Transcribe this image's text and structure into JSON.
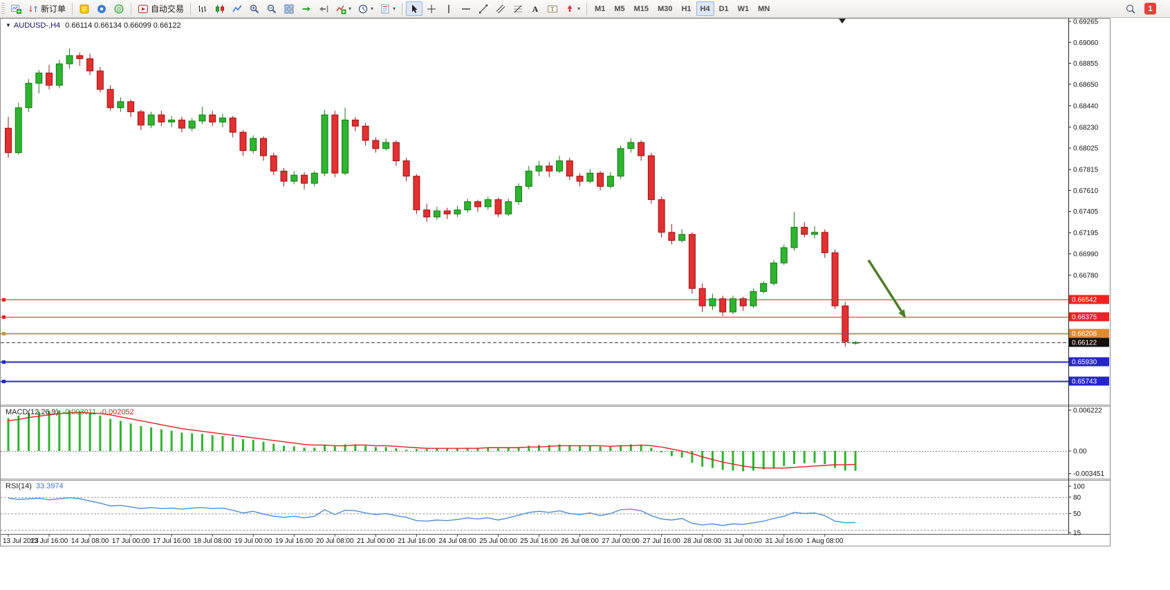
{
  "toolbar": {
    "new_order_label": "新订单",
    "autotrade_label": "自动交易",
    "timeframes": [
      "M1",
      "M5",
      "M15",
      "M30",
      "H1",
      "H4",
      "D1",
      "W1",
      "MN"
    ],
    "active_timeframe": "H4",
    "notification_count": "1",
    "icons": [
      "new-chart",
      "new-order",
      "metaeditor",
      "options",
      "community",
      "autotrading",
      "bars-chart",
      "candlestick-chart",
      "line-chart",
      "zoom-in",
      "zoom-out",
      "tile-windows",
      "auto-scroll",
      "chart-shift",
      "indicators",
      "periods",
      "templates",
      "cursor",
      "crosshair",
      "vertical-line",
      "horizontal-line",
      "trendline",
      "equidistant-channel",
      "fibonacci",
      "text",
      "text-label",
      "arrow-shapes",
      "search",
      "notification"
    ]
  },
  "chart": {
    "symbol_period": "AUDUSD-,H4",
    "ohlc_readout": "0.66114 0.66134 0.66099 0.66122",
    "macd_label": "MACD(12,26,9)",
    "macd_value_main": "-0.003011",
    "macd_value_signal": "-0.002052",
    "rsi_label": "RSI(14)",
    "rsi_value": "33.3974"
  },
  "chart_data": {
    "type": "candlestick",
    "symbol": "AUDUSD-",
    "timeframe": "H4",
    "price_axis_labels": [
      "0.69265",
      "0.69060",
      "0.68855",
      "0.68650",
      "0.68440",
      "0.68230",
      "0.68025",
      "0.67815",
      "0.67610",
      "0.67405",
      "0.67195",
      "0.66990",
      "0.66780"
    ],
    "time_labels": [
      "13 Jul 2023",
      "13 Jul 16:00",
      "14 Jul 08:00",
      "17 Jul 00:00",
      "17 Jul 16:00",
      "18 Jul 08:00",
      "19 Jul 00:00",
      "19 Jul 16:00",
      "20 Jul 08:00",
      "21 Jul 00:00",
      "21 Jul 16:00",
      "24 Jul 08:00",
      "25 Jul 00:00",
      "25 Jul 16:00",
      "26 Jul 08:00",
      "27 Jul 00:00",
      "27 Jul 16:00",
      "28 Jul 08:00",
      "31 Jul 00:00",
      "31 Jul 16:00",
      "1 Aug 08:00"
    ],
    "candles": [
      [
        0.6822,
        0.6833,
        0.6793,
        0.6798
      ],
      [
        0.6798,
        0.6847,
        0.6796,
        0.6842
      ],
      [
        0.6842,
        0.687,
        0.6838,
        0.6866
      ],
      [
        0.6866,
        0.6879,
        0.6856,
        0.6876
      ],
      [
        0.6876,
        0.6884,
        0.686,
        0.6864
      ],
      [
        0.6864,
        0.6889,
        0.6861,
        0.6885
      ],
      [
        0.6885,
        0.69,
        0.688,
        0.6893
      ],
      [
        0.6893,
        0.6896,
        0.6883,
        0.689
      ],
      [
        0.689,
        0.6895,
        0.6874,
        0.6878
      ],
      [
        0.6878,
        0.6882,
        0.6857,
        0.686
      ],
      [
        0.686,
        0.6864,
        0.6839,
        0.6842
      ],
      [
        0.6842,
        0.6852,
        0.6838,
        0.6848
      ],
      [
        0.6848,
        0.685,
        0.6833,
        0.6838
      ],
      [
        0.6838,
        0.684,
        0.682,
        0.6825
      ],
      [
        0.6825,
        0.6838,
        0.6822,
        0.6835
      ],
      [
        0.6835,
        0.6839,
        0.6824,
        0.6828
      ],
      [
        0.6828,
        0.6834,
        0.6823,
        0.683
      ],
      [
        0.683,
        0.6833,
        0.6818,
        0.6822
      ],
      [
        0.6822,
        0.6832,
        0.6819,
        0.6829
      ],
      [
        0.6829,
        0.6843,
        0.6826,
        0.6835
      ],
      [
        0.6835,
        0.6839,
        0.6824,
        0.6828
      ],
      [
        0.6828,
        0.6836,
        0.6823,
        0.6832
      ],
      [
        0.6832,
        0.6834,
        0.6813,
        0.6818
      ],
      [
        0.6818,
        0.682,
        0.6795,
        0.68
      ],
      [
        0.68,
        0.6815,
        0.6797,
        0.6812
      ],
      [
        0.6812,
        0.6814,
        0.679,
        0.6795
      ],
      [
        0.6795,
        0.6798,
        0.6776,
        0.678
      ],
      [
        0.678,
        0.6783,
        0.6765,
        0.677
      ],
      [
        0.677,
        0.678,
        0.6767,
        0.6776
      ],
      [
        0.6776,
        0.6779,
        0.6762,
        0.6768
      ],
      [
        0.6768,
        0.678,
        0.6765,
        0.6778
      ],
      [
        0.6778,
        0.684,
        0.6775,
        0.6835
      ],
      [
        0.6835,
        0.6839,
        0.6774,
        0.6778
      ],
      [
        0.6778,
        0.6842,
        0.6776,
        0.683
      ],
      [
        0.683,
        0.6833,
        0.6819,
        0.6824
      ],
      [
        0.6824,
        0.6827,
        0.6805,
        0.681
      ],
      [
        0.681,
        0.6813,
        0.6798,
        0.6802
      ],
      [
        0.6802,
        0.6812,
        0.68,
        0.6808
      ],
      [
        0.6808,
        0.681,
        0.6785,
        0.679
      ],
      [
        0.679,
        0.6793,
        0.677,
        0.6775
      ],
      [
        0.6775,
        0.6777,
        0.6738,
        0.6742
      ],
      [
        0.6742,
        0.6748,
        0.673,
        0.6735
      ],
      [
        0.6735,
        0.6745,
        0.6732,
        0.6741
      ],
      [
        0.6741,
        0.6744,
        0.6733,
        0.6738
      ],
      [
        0.6738,
        0.6746,
        0.6735,
        0.6742
      ],
      [
        0.6742,
        0.6753,
        0.6739,
        0.675
      ],
      [
        0.675,
        0.6752,
        0.674,
        0.6745
      ],
      [
        0.6745,
        0.6755,
        0.6742,
        0.6752
      ],
      [
        0.6752,
        0.6754,
        0.6735,
        0.6738
      ],
      [
        0.6738,
        0.6753,
        0.6736,
        0.675
      ],
      [
        0.675,
        0.6768,
        0.6747,
        0.6765
      ],
      [
        0.6765,
        0.6785,
        0.6762,
        0.678
      ],
      [
        0.678,
        0.679,
        0.6775,
        0.6785
      ],
      [
        0.6785,
        0.6789,
        0.6774,
        0.678
      ],
      [
        0.678,
        0.6795,
        0.6778,
        0.679
      ],
      [
        0.679,
        0.6793,
        0.6771,
        0.6775
      ],
      [
        0.6775,
        0.6778,
        0.6765,
        0.677
      ],
      [
        0.677,
        0.6782,
        0.6768,
        0.6778
      ],
      [
        0.6778,
        0.678,
        0.6761,
        0.6765
      ],
      [
        0.6765,
        0.6779,
        0.6763,
        0.6775
      ],
      [
        0.6775,
        0.6805,
        0.6772,
        0.6802
      ],
      [
        0.6802,
        0.6812,
        0.6798,
        0.6808
      ],
      [
        0.6808,
        0.681,
        0.679,
        0.6795
      ],
      [
        0.6795,
        0.6798,
        0.6748,
        0.6752
      ],
      [
        0.6752,
        0.6755,
        0.6715,
        0.672
      ],
      [
        0.672,
        0.6728,
        0.6708,
        0.6712
      ],
      [
        0.6712,
        0.6723,
        0.671,
        0.6718
      ],
      [
        0.6718,
        0.672,
        0.666,
        0.6665
      ],
      [
        0.6665,
        0.667,
        0.6642,
        0.6648
      ],
      [
        0.6648,
        0.666,
        0.6644,
        0.6655
      ],
      [
        0.6655,
        0.6658,
        0.6638,
        0.6642
      ],
      [
        0.6642,
        0.6658,
        0.664,
        0.6655
      ],
      [
        0.6655,
        0.6657,
        0.6643,
        0.6648
      ],
      [
        0.6648,
        0.6665,
        0.6646,
        0.6662
      ],
      [
        0.6662,
        0.6672,
        0.666,
        0.667
      ],
      [
        0.667,
        0.6693,
        0.6668,
        0.669
      ],
      [
        0.669,
        0.6708,
        0.6688,
        0.6705
      ],
      [
        0.6705,
        0.674,
        0.6702,
        0.6725
      ],
      [
        0.6725,
        0.673,
        0.6715,
        0.6718
      ],
      [
        0.6718,
        0.6726,
        0.6714,
        0.672
      ],
      [
        0.672,
        0.6723,
        0.6695,
        0.67
      ],
      [
        0.67,
        0.6703,
        0.6645,
        0.6648
      ],
      [
        0.6648,
        0.6652,
        0.6608,
        0.6613
      ],
      [
        0.66114,
        0.66134,
        0.66099,
        0.66122
      ]
    ],
    "hlines": [
      {
        "price": 0.66542,
        "label": "0.66542",
        "color": "#f02020",
        "width": 1,
        "marker": true
      },
      {
        "price": 0.66375,
        "label": "0.66375",
        "color": "#f02020",
        "width": 1,
        "marker": true
      },
      {
        "price": 0.66208,
        "label": "0.66208",
        "color": "#e08a2e",
        "width": 2,
        "marker": true
      },
      {
        "price": 0.66122,
        "label": "0.66122",
        "color": "#3c3c3c",
        "width": 1,
        "style": "dash",
        "badge": "#101010",
        "marker": false
      },
      {
        "price": 0.6593,
        "label": "0.65930",
        "color": "#2626c8",
        "width": 2,
        "marker": true
      },
      {
        "price": 0.65743,
        "label": "0.65743",
        "color": "#2626c8",
        "width": 2,
        "marker": true
      }
    ],
    "macd": {
      "axis_labels": [
        "0.006222",
        "0.00",
        "-0.003451"
      ],
      "histogram": [
        0.005,
        0.0054,
        0.0058,
        0.006,
        0.0061,
        0.0062,
        0.0062,
        0.006,
        0.0058,
        0.0054,
        0.0049,
        0.0046,
        0.0042,
        0.0038,
        0.0036,
        0.0033,
        0.0031,
        0.0028,
        0.0027,
        0.0026,
        0.0024,
        0.0023,
        0.0021,
        0.0018,
        0.0017,
        0.0014,
        0.0011,
        0.0008,
        0.0007,
        0.0005,
        0.0005,
        0.0009,
        0.0007,
        0.001,
        0.001,
        0.0008,
        0.0006,
        0.0006,
        0.0004,
        0.0002,
        0.0003,
        0.0003,
        0.0004,
        0.0004,
        0.0004,
        0.0005,
        0.0005,
        0.0005,
        0.0004,
        0.0005,
        0.0006,
        0.0008,
        0.0009,
        0.0009,
        0.001,
        0.0009,
        0.0008,
        0.0008,
        0.0007,
        0.0007,
        0.0009,
        0.001,
        0.0009,
        0.0005,
        -0.0002,
        -0.0008,
        -0.001,
        -0.0018,
        -0.0024,
        -0.0026,
        -0.0029,
        -0.003,
        -0.0031,
        -0.003,
        -0.0028,
        -0.0026,
        -0.0023,
        -0.002,
        -0.0019,
        -0.0018,
        -0.002,
        -0.0026,
        -0.003,
        -0.003011
      ],
      "signal": [
        0.0046,
        0.0048,
        0.0051,
        0.0053,
        0.0055,
        0.0057,
        0.0058,
        0.0059,
        0.0058,
        0.0057,
        0.0055,
        0.0052,
        0.0049,
        0.0046,
        0.0043,
        0.004,
        0.0037,
        0.0034,
        0.0032,
        0.003,
        0.0028,
        0.0026,
        0.0024,
        0.0022,
        0.002,
        0.0018,
        0.0016,
        0.0014,
        0.0012,
        0.001,
        0.0009,
        0.0009,
        0.0008,
        0.0008,
        0.0009,
        0.0009,
        0.0008,
        0.0008,
        0.0007,
        0.0006,
        0.0005,
        0.0004,
        0.0004,
        0.0004,
        0.0004,
        0.0004,
        0.0004,
        0.0005,
        0.0005,
        0.0005,
        0.0005,
        0.0006,
        0.0006,
        0.0007,
        0.0008,
        0.0008,
        0.0008,
        0.0008,
        0.0008,
        0.0007,
        0.0008,
        0.0008,
        0.0009,
        0.0008,
        0.0006,
        0.0003,
        0.0,
        -0.0004,
        -0.0009,
        -0.0013,
        -0.0017,
        -0.002,
        -0.0023,
        -0.0025,
        -0.0026,
        -0.0026,
        -0.0026,
        -0.0025,
        -0.0024,
        -0.0023,
        -0.0022,
        -0.0021,
        -0.0021,
        -0.002052
      ]
    },
    "rsi": {
      "axis_labels": [
        "100",
        "80",
        "50",
        "15"
      ],
      "levels": [
        80,
        50,
        20
      ],
      "values": [
        78,
        76,
        77,
        78,
        75,
        77,
        79,
        77,
        73,
        69,
        64,
        65,
        62,
        59,
        61,
        59,
        60,
        58,
        60,
        61,
        59,
        60,
        56,
        51,
        54,
        49,
        45,
        43,
        45,
        42,
        45,
        57,
        48,
        56,
        55,
        51,
        48,
        50,
        46,
        43,
        37,
        36,
        38,
        37,
        39,
        42,
        40,
        42,
        38,
        42,
        47,
        52,
        54,
        52,
        55,
        50,
        48,
        51,
        46,
        50,
        57,
        58,
        55,
        46,
        40,
        38,
        41,
        32,
        29,
        31,
        28,
        31,
        30,
        33,
        36,
        41,
        45,
        52,
        50,
        51,
        46,
        36,
        33,
        33.4
      ]
    },
    "annotation_arrow": {
      "from": [
        1256,
        376
      ],
      "to": [
        1310,
        460
      ],
      "color": "#4e7d28"
    }
  }
}
